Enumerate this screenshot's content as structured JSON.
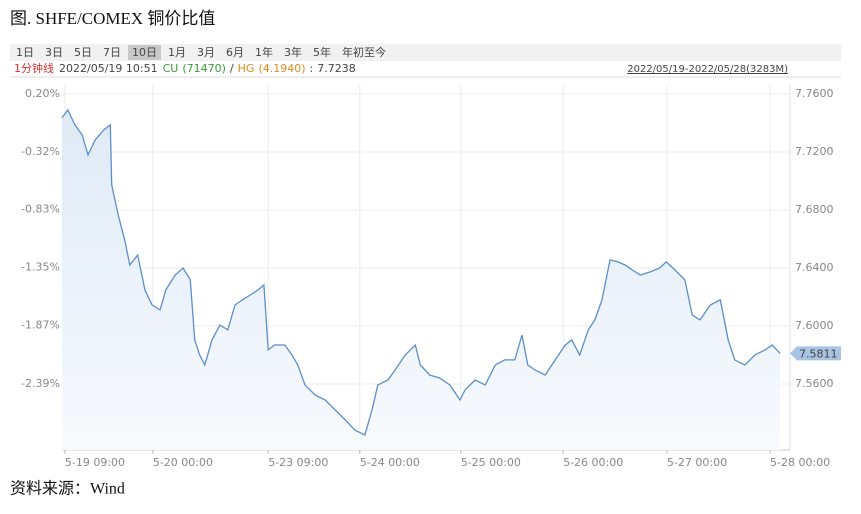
{
  "title": "图. SHFE/COMEX 铜价比值",
  "tabs": [
    "1日",
    "3日",
    "5日",
    "7日",
    "10日",
    "1月",
    "3月",
    "6月",
    "1年",
    "3年",
    "5年",
    "年初至今"
  ],
  "active_tab": "10日",
  "info": {
    "interval": "1分钟线",
    "time": "2022/05/19 10:51",
    "cu_label": "CU",
    "cu_value": "(71470)",
    "sep": "/",
    "hg_label": "HG",
    "hg_value": "(4.1940)",
    "colon": ":",
    "ratio": "7.7238",
    "range": "2022/05/19-2022/05/28(3283M)"
  },
  "source": "资料来源：Wind",
  "chart_data": {
    "type": "line",
    "xlim": [
      0,
      100
    ],
    "xticks": [
      {
        "value": 0.4,
        "label": "5-19 09:00"
      },
      {
        "value": 12.6,
        "label": "5-20 00:00"
      },
      {
        "value": 28.6,
        "label": "5-23 09:00"
      },
      {
        "value": 41.3,
        "label": "5-24 00:00"
      },
      {
        "value": 55.3,
        "label": "5-25 00:00"
      },
      {
        "value": 69.5,
        "label": "5-26 00:00"
      },
      {
        "value": 83.9,
        "label": "5-27 00:00"
      },
      {
        "value": 98.2,
        "label": "5-28 00:00"
      }
    ],
    "ylim": [
      -2.98,
      0.28
    ],
    "yticks": [
      {
        "value": 0.2,
        "label": "0.20%"
      },
      {
        "value": -0.32,
        "label": "-0.32%"
      },
      {
        "value": -0.83,
        "label": "-0.83%"
      },
      {
        "value": -1.35,
        "label": "-1.35%"
      },
      {
        "value": -1.87,
        "label": "-1.87%"
      },
      {
        "value": -2.39,
        "label": "-2.39%"
      }
    ],
    "y2lim": [
      7.5145,
      7.7662
    ],
    "y2ticks": [
      {
        "value": 7.76,
        "label": "7.7600"
      },
      {
        "value": 7.72,
        "label": "7.7200"
      },
      {
        "value": 7.68,
        "label": "7.6800"
      },
      {
        "value": 7.64,
        "label": "7.6400"
      },
      {
        "value": 7.6,
        "label": "7.6000"
      },
      {
        "value": 7.56,
        "label": "7.5600"
      }
    ],
    "grid": true,
    "current_value": 7.5811,
    "series": [
      {
        "color": "#5b8fc9",
        "axis": "y2",
        "x": [
          0.0,
          0.8,
          1.8,
          2.8,
          3.6,
          4.6,
          5.8,
          6.7,
          6.9,
          7.8,
          8.7,
          9.4,
          10.5,
          11.5,
          12.5,
          13.6,
          14.4,
          15.7,
          16.8,
          17.8,
          18.4,
          19.1,
          19.8,
          20.8,
          21.9,
          23.0,
          24.0,
          25.0,
          26.1,
          27.2,
          28.0,
          28.6,
          29.5,
          30.9,
          31.9,
          32.7,
          33.7,
          35.1,
          36.5,
          37.9,
          39.3,
          40.6,
          42.0,
          43.0,
          43.8,
          45.2,
          46.2,
          47.6,
          49.0,
          49.7,
          51.0,
          52.4,
          53.8,
          55.2,
          55.9,
          57.3,
          58.7,
          60.1,
          61.4,
          62.8,
          63.8,
          64.6,
          65.6,
          67.0,
          68.4,
          69.8,
          70.7,
          71.8,
          73.0,
          73.9,
          74.9,
          76.0,
          77.1,
          78.1,
          79.1,
          80.2,
          81.6,
          82.9,
          83.8,
          85.0,
          86.4,
          87.4,
          88.5,
          89.9,
          91.3,
          92.4,
          93.3,
          94.7,
          96.1,
          97.5,
          98.5,
          99.6
        ],
        "values": [
          7.7435,
          7.749,
          7.7387,
          7.7318,
          7.718,
          7.7284,
          7.7353,
          7.7387,
          7.6973,
          7.6766,
          7.6594,
          7.6421,
          7.649,
          7.6249,
          7.6145,
          7.6111,
          7.6249,
          7.6352,
          7.64,
          7.6318,
          7.5904,
          7.58,
          7.5731,
          7.5904,
          7.6007,
          7.5973,
          7.6145,
          7.618,
          7.6214,
          7.6249,
          7.6283,
          7.5835,
          7.5869,
          7.5869,
          7.58,
          7.5731,
          7.5593,
          7.5524,
          7.549,
          7.5421,
          7.5352,
          7.5283,
          7.5248,
          7.5421,
          7.5593,
          7.5628,
          7.5697,
          7.58,
          7.5869,
          7.5731,
          7.5662,
          7.5641,
          7.5593,
          7.549,
          7.5559,
          7.5628,
          7.5593,
          7.5731,
          7.5766,
          7.5766,
          7.5938,
          7.5731,
          7.5697,
          7.5662,
          7.5766,
          7.5869,
          7.5904,
          7.58,
          7.5973,
          7.6042,
          7.618,
          7.6456,
          7.6442,
          7.6421,
          7.6387,
          7.6352,
          7.6373,
          7.64,
          7.6442,
          7.6387,
          7.6318,
          7.6076,
          7.6042,
          7.6145,
          7.618,
          7.5904,
          7.5766,
          7.5731,
          7.58,
          7.5835,
          7.5869,
          7.5811
        ]
      }
    ]
  }
}
